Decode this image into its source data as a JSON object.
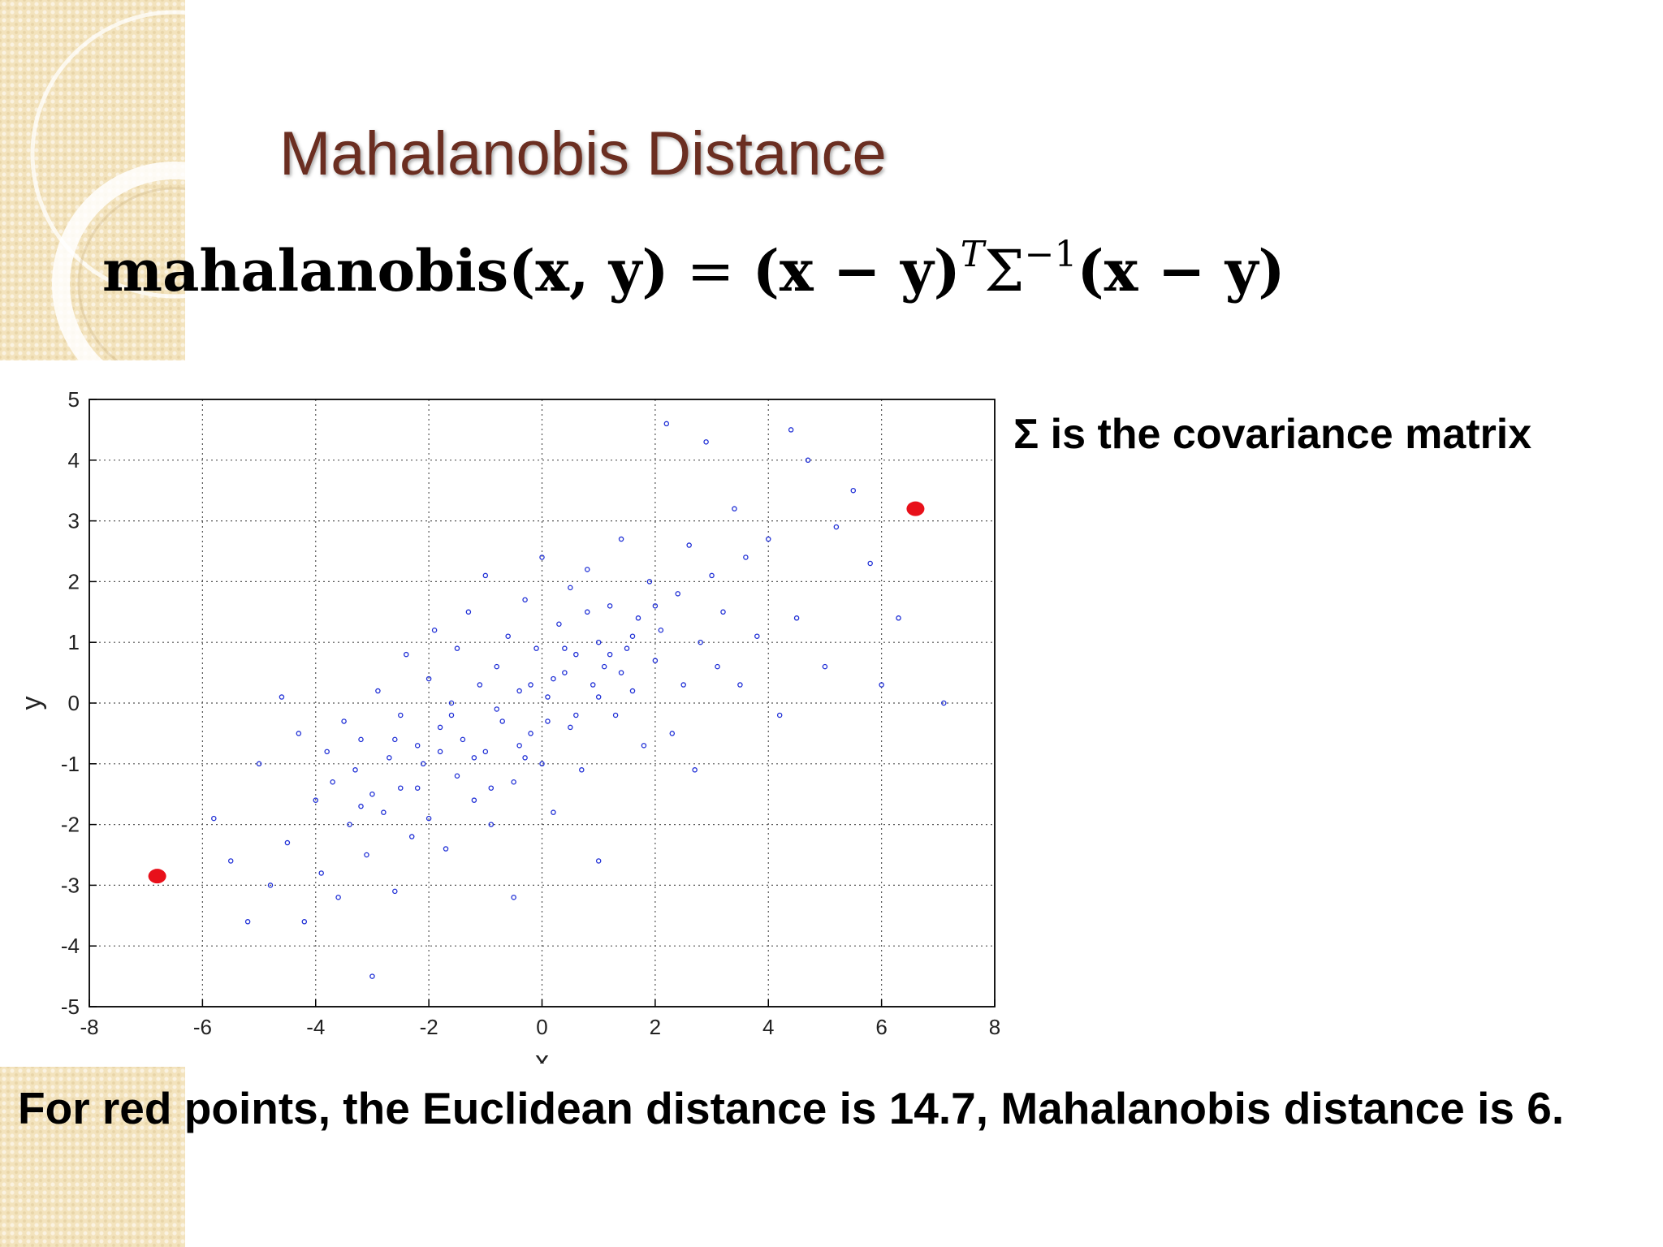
{
  "slide": {
    "title": "Mahalanobis Distance",
    "formula": {
      "lhs": "mahalanobis",
      "args": "(x, y)",
      "equals": " = ",
      "diff": "(x − y)",
      "transpose": "T",
      "sigma": "Σ",
      "inverse": "−1",
      "diff2": "(x − y)"
    },
    "covariance_note": "Σ is the covariance matrix",
    "caption": "For red points, the Euclidean distance is 14.7, Mahalanobis distance is 6."
  },
  "colors": {
    "title": "#6b2e21",
    "points": "#1f2fd6",
    "highlight": "#e8101a",
    "grid": "#555555",
    "decor": "#f3e3bd"
  },
  "chart_data": {
    "type": "scatter",
    "title": "",
    "xlabel": "x",
    "ylabel": "y",
    "xlim": [
      -8,
      8
    ],
    "ylim": [
      -5,
      5
    ],
    "xticks": [
      "-8",
      "-6",
      "-4",
      "-2",
      "0",
      "2",
      "4",
      "6",
      "8"
    ],
    "yticks": [
      "-5",
      "-4",
      "-3",
      "-2",
      "-1",
      "0",
      "1",
      "2",
      "3",
      "4",
      "5"
    ],
    "grid": true,
    "series": [
      {
        "marker": "small-blue-dot",
        "points": [
          [
            -5.8,
            -1.9
          ],
          [
            -5.5,
            -2.6
          ],
          [
            -5.2,
            -3.6
          ],
          [
            -5.0,
            -1.0
          ],
          [
            -4.8,
            -3.0
          ],
          [
            -4.6,
            0.1
          ],
          [
            -4.5,
            -2.3
          ],
          [
            -4.3,
            -0.5
          ],
          [
            -4.2,
            -3.6
          ],
          [
            -4.0,
            -1.6
          ],
          [
            -3.9,
            -2.8
          ],
          [
            -3.8,
            -0.8
          ],
          [
            -3.7,
            -1.3
          ],
          [
            -3.6,
            -3.2
          ],
          [
            -3.5,
            -0.3
          ],
          [
            -3.4,
            -2.0
          ],
          [
            -3.3,
            -1.1
          ],
          [
            -3.2,
            -0.6
          ],
          [
            -3.1,
            -2.5
          ],
          [
            -3.0,
            -1.5
          ],
          [
            -3.0,
            -4.5
          ],
          [
            -2.9,
            0.2
          ],
          [
            -2.8,
            -1.8
          ],
          [
            -2.7,
            -0.9
          ],
          [
            -2.6,
            -3.1
          ],
          [
            -2.5,
            -0.2
          ],
          [
            -2.5,
            -1.4
          ],
          [
            -2.4,
            0.8
          ],
          [
            -2.3,
            -2.2
          ],
          [
            -2.2,
            -0.7
          ],
          [
            -2.1,
            -1.0
          ],
          [
            -2.0,
            0.4
          ],
          [
            -2.0,
            -1.9
          ],
          [
            -1.9,
            1.2
          ],
          [
            -1.8,
            -0.4
          ],
          [
            -1.7,
            -2.4
          ],
          [
            -1.6,
            0.0
          ],
          [
            -1.5,
            -1.2
          ],
          [
            -1.5,
            0.9
          ],
          [
            -1.4,
            -0.6
          ],
          [
            -1.3,
            1.5
          ],
          [
            -1.2,
            -1.6
          ],
          [
            -1.1,
            0.3
          ],
          [
            -1.0,
            -0.8
          ],
          [
            -1.0,
            2.1
          ],
          [
            -0.9,
            -2.0
          ],
          [
            -0.8,
            0.6
          ],
          [
            -0.7,
            -0.3
          ],
          [
            -0.6,
            1.1
          ],
          [
            -0.5,
            -1.3
          ],
          [
            -0.5,
            -3.2
          ],
          [
            -0.4,
            0.2
          ],
          [
            -0.3,
            1.7
          ],
          [
            -0.2,
            -0.5
          ],
          [
            -0.1,
            0.9
          ],
          [
            0.0,
            -1.0
          ],
          [
            0.0,
            2.4
          ],
          [
            0.1,
            0.1
          ],
          [
            0.2,
            -1.8
          ],
          [
            0.3,
            1.3
          ],
          [
            0.4,
            0.5
          ],
          [
            0.5,
            -0.4
          ],
          [
            0.5,
            1.9
          ],
          [
            0.6,
            0.8
          ],
          [
            0.7,
            -1.1
          ],
          [
            0.8,
            2.2
          ],
          [
            0.9,
            0.3
          ],
          [
            1.0,
            1.0
          ],
          [
            1.0,
            -2.6
          ],
          [
            1.1,
            0.6
          ],
          [
            1.2,
            1.6
          ],
          [
            1.3,
            -0.2
          ],
          [
            1.4,
            2.7
          ],
          [
            1.5,
            0.9
          ],
          [
            1.6,
            0.2
          ],
          [
            1.7,
            1.4
          ],
          [
            1.8,
            -0.7
          ],
          [
            1.9,
            2.0
          ],
          [
            2.0,
            0.7
          ],
          [
            2.1,
            1.2
          ],
          [
            2.2,
            4.6
          ],
          [
            2.3,
            -0.5
          ],
          [
            2.4,
            1.8
          ],
          [
            2.5,
            0.3
          ],
          [
            2.6,
            2.6
          ],
          [
            2.7,
            -1.1
          ],
          [
            2.8,
            1.0
          ],
          [
            2.9,
            4.3
          ],
          [
            3.0,
            2.1
          ],
          [
            3.1,
            0.6
          ],
          [
            3.2,
            1.5
          ],
          [
            3.4,
            3.2
          ],
          [
            3.5,
            0.3
          ],
          [
            3.6,
            2.4
          ],
          [
            3.8,
            1.1
          ],
          [
            4.0,
            2.7
          ],
          [
            4.2,
            -0.2
          ],
          [
            4.4,
            4.5
          ],
          [
            4.5,
            1.4
          ],
          [
            4.7,
            4.0
          ],
          [
            5.0,
            0.6
          ],
          [
            5.2,
            2.9
          ],
          [
            5.5,
            3.5
          ],
          [
            5.8,
            2.3
          ],
          [
            6.0,
            0.3
          ],
          [
            6.3,
            1.4
          ],
          [
            7.1,
            0.0
          ],
          [
            -1.6,
            -0.2
          ],
          [
            -1.2,
            -0.9
          ],
          [
            -0.8,
            -0.1
          ],
          [
            -0.4,
            -0.7
          ],
          [
            0.2,
            0.4
          ],
          [
            0.6,
            -0.2
          ],
          [
            1.0,
            0.1
          ],
          [
            1.4,
            0.5
          ],
          [
            -2.2,
            -1.4
          ],
          [
            -1.8,
            -0.8
          ],
          [
            -0.2,
            0.3
          ],
          [
            0.4,
            0.9
          ],
          [
            0.8,
            1.5
          ],
          [
            1.6,
            1.1
          ],
          [
            2.0,
            1.6
          ],
          [
            -0.9,
            -1.4
          ],
          [
            -0.3,
            -0.9
          ],
          [
            0.1,
            -0.3
          ],
          [
            1.2,
            0.8
          ],
          [
            -2.6,
            -0.6
          ],
          [
            -3.2,
            -1.7
          ]
        ]
      },
      {
        "marker": "large-red-dot",
        "points": [
          [
            -6.8,
            -2.85
          ],
          [
            6.6,
            3.2
          ]
        ]
      }
    ]
  }
}
